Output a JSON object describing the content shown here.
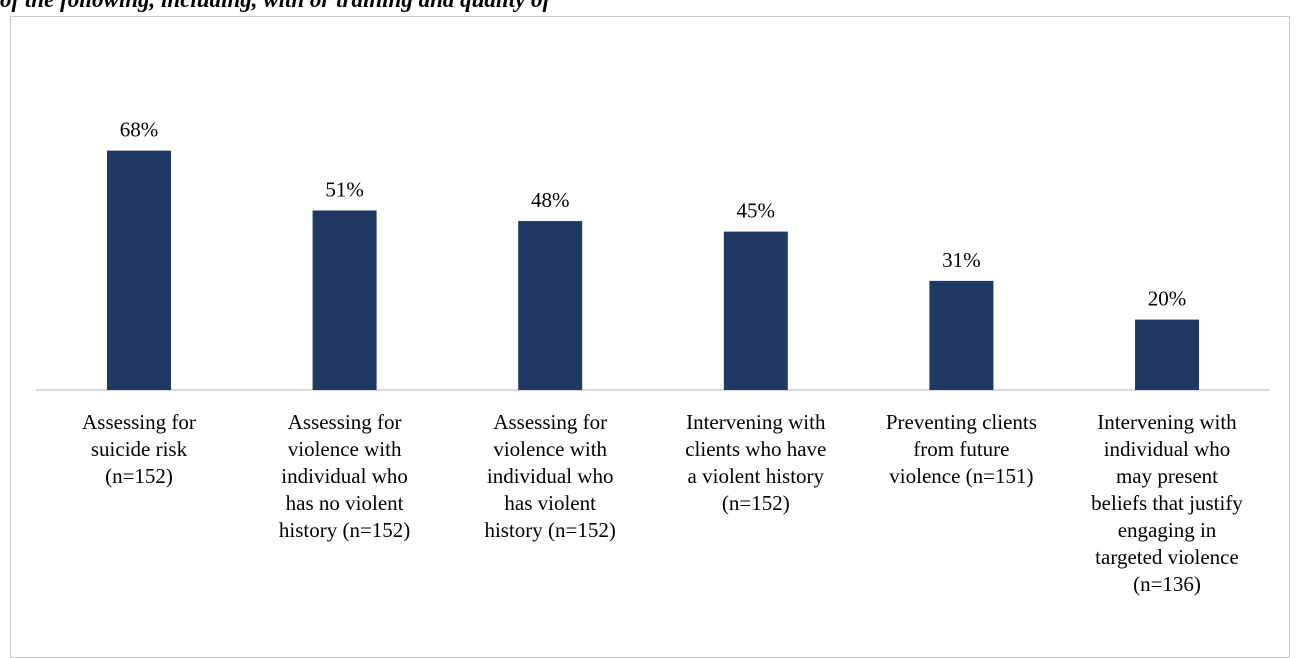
{
  "title": "of the following, including, with or training and quality of",
  "chart_data": {
    "type": "bar",
    "categories": [
      "Assessing for suicide risk (n=152)",
      "Assessing for violence with individual who has no violent history (n=152)",
      "Assessing for violence with individual who has violent history (n=152)",
      "Intervening with clients who have a violent history (n=152)",
      "Preventing clients from future violence (n=151)",
      "Intervening with individual who may present beliefs that justify engaging in targeted violence (n=136)"
    ],
    "category_lines": [
      [
        "Assessing for",
        "suicide risk",
        "(n=152)"
      ],
      [
        "Assessing for",
        "violence with",
        "individual who",
        "has no violent",
        "history (n=152)"
      ],
      [
        "Assessing for",
        "violence with",
        "individual who",
        "has violent",
        "history (n=152)"
      ],
      [
        "Intervening with",
        "clients who have",
        "a violent history",
        "(n=152)"
      ],
      [
        "Preventing clients",
        "from future",
        "violence (n=151)"
      ],
      [
        "Intervening with",
        "individual who",
        "may present",
        "beliefs that justify",
        "engaging in",
        "targeted violence",
        "(n=136)"
      ]
    ],
    "values": [
      68,
      51,
      48,
      45,
      31,
      20
    ],
    "value_labels": [
      "68%",
      "51%",
      "48%",
      "45%",
      "31%",
      "20%"
    ],
    "ylim": [
      0,
      100
    ],
    "grid": false,
    "colors": {
      "bar": "#203864",
      "axis": "#d9d9d9"
    }
  }
}
